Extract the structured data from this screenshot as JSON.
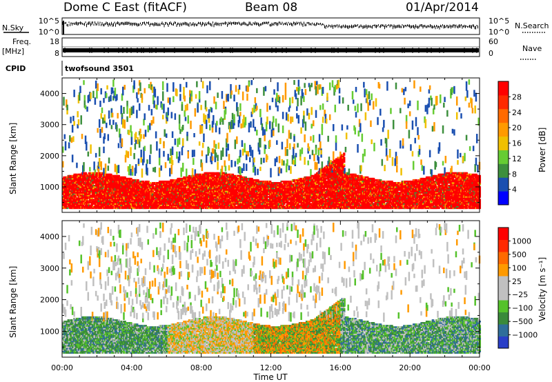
{
  "header": {
    "station": "Dome C East (fitACF)",
    "beam": "Beam 08",
    "date": "01/Apr/2014"
  },
  "strip_labels": {
    "nsky": "N.Sky",
    "nsearch": "N.Search",
    "freq": "Freq.",
    "freq_unit": "[MHz]",
    "nave": "Nave",
    "cpid": "CPID",
    "cpid_value": "twofsound 3501"
  },
  "strip_ticks": {
    "noise_left": [
      "10^5",
      "10^0"
    ],
    "noise_right": [
      "10^5",
      "10^0"
    ],
    "freq_left": [
      "18",
      "8"
    ],
    "nave_right": [
      "60",
      "0"
    ]
  },
  "colors": {
    "power_scale": [
      "#0000ff",
      "#1a4fb0",
      "#3d8f3d",
      "#66cc33",
      "#f0c000",
      "#ff9a00",
      "#ff6a00",
      "#ff2a00",
      "#ff0000"
    ],
    "velocity_scale": [
      "#2a3fc8",
      "#2f6e9a",
      "#3a8a3a",
      "#55c22b",
      "#c0c0c0",
      "#c0c0c0",
      "#ff9a00",
      "#ff6a00",
      "#ff2a00",
      "#ff0000"
    ]
  },
  "chart_data": [
    {
      "type": "heatmap",
      "name": "power",
      "xlabel": "Time UT",
      "ylabel": "Slant Range [km]",
      "x_ticks": [
        "00:00",
        "04:00",
        "08:00",
        "12:00",
        "16:00",
        "20:00",
        "00:00"
      ],
      "x_range_hours": [
        0,
        24
      ],
      "y_ticks": [
        1000,
        2000,
        3000,
        4000
      ],
      "ylim": [
        180,
        4500
      ],
      "colorbar": {
        "label": "Power [dB]",
        "ticks": [
          "28",
          "24",
          "20",
          "16",
          "12",
          "8",
          "4"
        ],
        "range": [
          0,
          32
        ]
      }
    },
    {
      "type": "heatmap",
      "name": "velocity",
      "xlabel": "Time UT",
      "ylabel": "Slant Range [km]",
      "x_ticks": [
        "00:00",
        "04:00",
        "08:00",
        "12:00",
        "16:00",
        "20:00",
        "00:00"
      ],
      "x_range_hours": [
        0,
        24
      ],
      "y_ticks": [
        1000,
        2000,
        3000,
        4000
      ],
      "ylim": [
        180,
        4500
      ],
      "colorbar": {
        "label": "Velocity [m s⁻¹]",
        "ticks": [
          "1000",
          "500",
          "100",
          "25",
          "−25",
          "−100",
          "−500",
          "−1000"
        ]
      }
    }
  ]
}
